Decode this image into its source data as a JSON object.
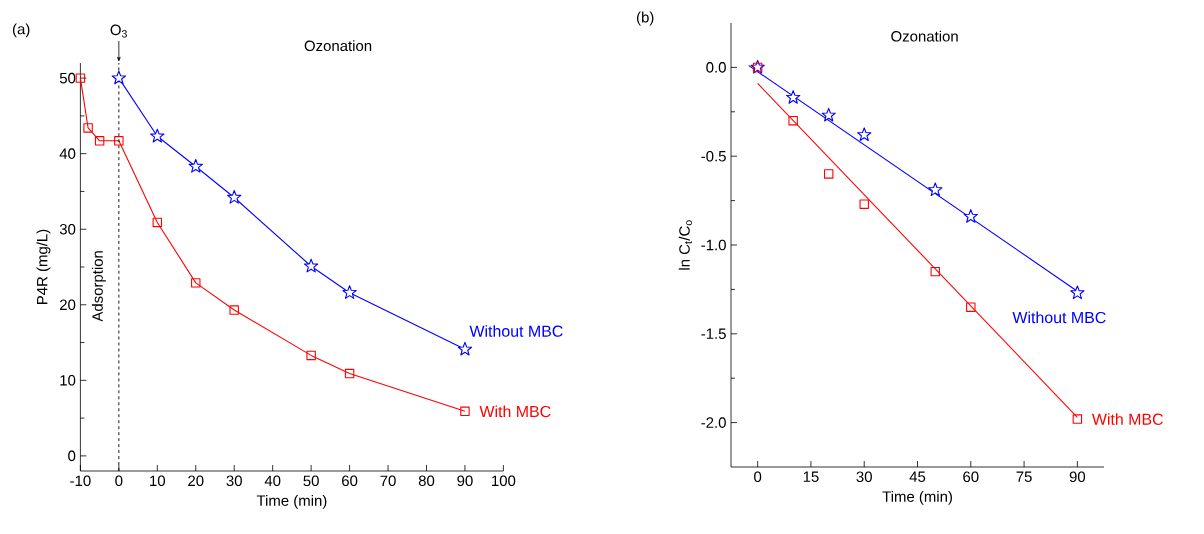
{
  "chart_data": [
    {
      "type": "line",
      "title": "(a)",
      "xlabel": "Time (min)",
      "ylabel": "P4R (mg/L)",
      "xlim": [
        -10,
        100
      ],
      "ylim": [
        -2,
        52
      ],
      "xticks": [
        -10,
        0,
        10,
        20,
        30,
        40,
        50,
        60,
        70,
        80,
        90,
        100
      ],
      "yticks": [
        0,
        10,
        20,
        30,
        40,
        50
      ],
      "ref_lines": [
        {
          "axis": "x",
          "value": 0,
          "label": "O$_{3}$",
          "line_style": "dashed",
          "color": "#000000"
        }
      ],
      "annotations": [
        "Adsorption",
        "Ozonation"
      ],
      "series": [
        {
          "name": "Without MBC",
          "color": "#0000ff",
          "marker": "star",
          "x": [
            0,
            10,
            20,
            30,
            50,
            60,
            90
          ],
          "values": [
            50,
            42.3,
            38.3,
            34.2,
            25.1,
            21.6,
            14.1
          ]
        },
        {
          "name": "With MBC",
          "color": "#ff0000",
          "marker": "square",
          "x": [
            -10,
            -8,
            -5,
            0,
            10,
            20,
            30,
            50,
            60,
            90
          ],
          "values": [
            50,
            43.4,
            41.7,
            41.7,
            30.9,
            22.9,
            19.3,
            13.3,
            10.9,
            5.9
          ]
        }
      ]
    },
    {
      "type": "scatter",
      "title": "(b)",
      "xlabel": "Time (min)",
      "ylabel": "ln C$_{t}$/C$_{o}$",
      "xlim": [
        -7.5,
        97.5
      ],
      "ylim": [
        -2.25,
        0.25
      ],
      "xticks": [
        0,
        15,
        30,
        45,
        60,
        75,
        90
      ],
      "yticks": [
        {
          "value": -2,
          "label": "-2.0"
        },
        {
          "value": -1.5,
          "label": "-1.5"
        },
        {
          "value": -1,
          "label": "-1.0"
        },
        {
          "value": -0.5,
          "label": "-0.5"
        },
        {
          "value": 0,
          "label": "0.0"
        }
      ],
      "annotations": [
        "Ozonation"
      ],
      "series": [
        {
          "type": "line",
          "color": "#0000ff",
          "marker": "none",
          "x": [
            -2.5,
            90
          ],
          "values": [
            0.01,
            -1.26
          ]
        },
        {
          "type": "line",
          "color": "#ff0000",
          "marker": "none",
          "x": [
            0,
            90
          ],
          "values": [
            -0.09,
            -1.97
          ]
        },
        {
          "name": "Without MBC",
          "color": "#0000ff",
          "marker": "star",
          "x": [
            0,
            10,
            20,
            30,
            50,
            60,
            90
          ],
          "values": [
            0,
            -0.17,
            -0.27,
            -0.38,
            -0.69,
            -0.84,
            -1.27
          ]
        },
        {
          "name": "With MBC",
          "color": "#ff0000",
          "marker": "square",
          "x": [
            0,
            10,
            20,
            30,
            50,
            60,
            90
          ],
          "values": [
            0,
            -0.3,
            -0.6,
            -0.77,
            -1.15,
            -1.35,
            -1.98
          ]
        }
      ]
    }
  ]
}
